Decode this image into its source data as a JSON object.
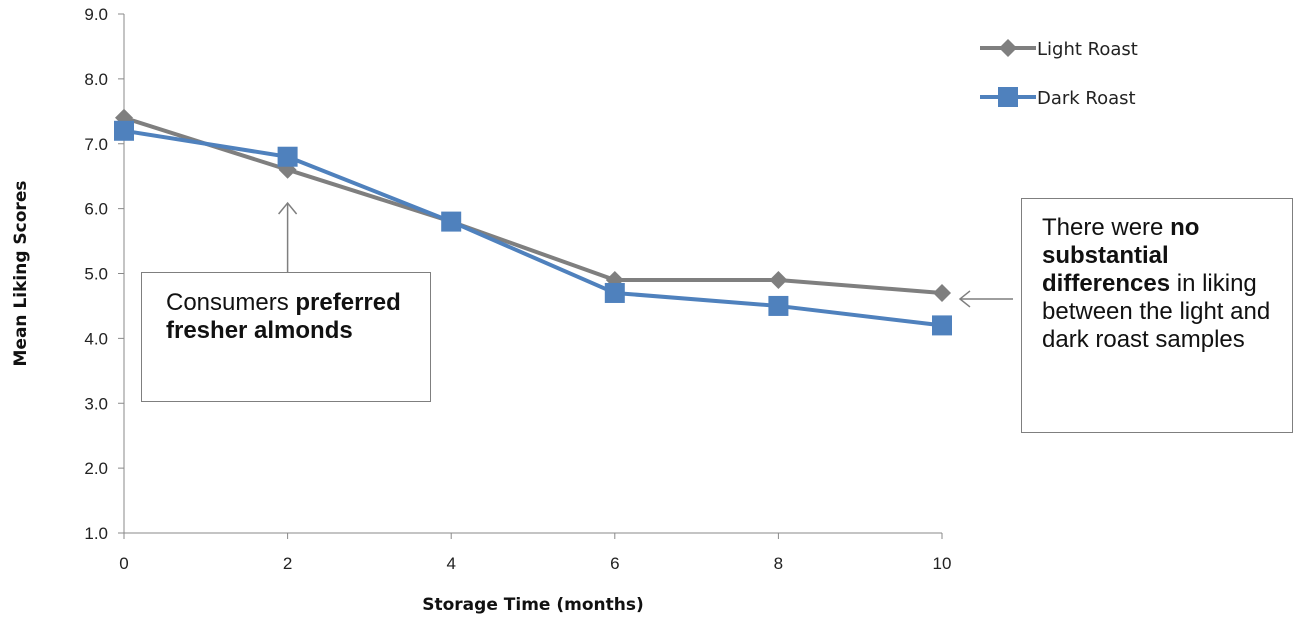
{
  "chart_data": {
    "type": "line",
    "title": "",
    "xlabel": "Storage Time (months)",
    "ylabel": "Mean Liking Scores",
    "x": [
      0,
      2,
      4,
      6,
      8,
      10
    ],
    "x_ticks": [
      "0",
      "2",
      "4",
      "6",
      "8",
      "10"
    ],
    "xlim": [
      0,
      10
    ],
    "y_ticks": [
      "1.0",
      "2.0",
      "3.0",
      "4.0",
      "5.0",
      "6.0",
      "7.0",
      "8.0",
      "9.0"
    ],
    "ylim": [
      1.0,
      9.0
    ],
    "grid": false,
    "legend_position": "top-right",
    "series": [
      {
        "name": "Light Roast",
        "values": [
          7.4,
          6.6,
          5.8,
          4.9,
          4.9,
          4.7
        ],
        "color": "#7f7f7f",
        "marker": "diamond"
      },
      {
        "name": "Dark Roast",
        "values": [
          7.2,
          6.8,
          5.8,
          4.7,
          4.5,
          4.2
        ],
        "color": "#4f81bd",
        "marker": "square"
      }
    ],
    "annotations": [
      {
        "parts": [
          "Consumers ",
          "preferred fresher almonds"
        ],
        "points_to_x": 2
      },
      {
        "parts": [
          "There were ",
          "no substantial differences",
          " in liking between the light and dark roast samples"
        ],
        "points_to_x": 10
      }
    ]
  }
}
